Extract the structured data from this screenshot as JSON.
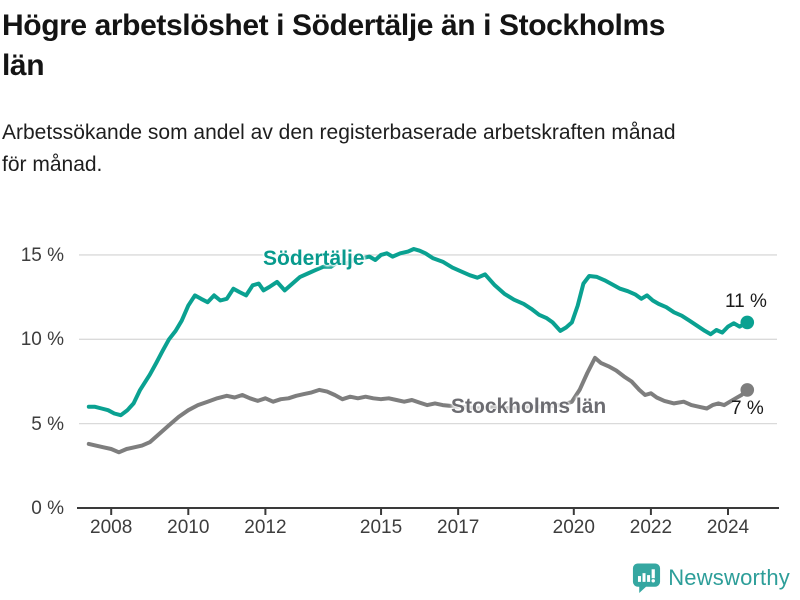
{
  "header": {
    "title_line1": "Högre arbetslöshet i Södertälje än i Stockholms",
    "title_line2": "län",
    "subtitle_line1": "Arbetssökande som andel av den registerbaserade arbetskraften månad",
    "subtitle_line2": "för månad."
  },
  "chart_data": {
    "type": "line",
    "title": "Högre arbetslöshet i Södertälje än i Stockholms län",
    "subtitle": "Arbetssökande som andel av den registerbaserade arbetskraften månad för månad.",
    "unit": "%",
    "grid": "horizontal",
    "legend_position": "inline-labels",
    "ylim": [
      0,
      16.5
    ],
    "xlim": [
      2007.3,
      2025.4
    ],
    "y_ticks": [
      {
        "value": 15,
        "label": "15 %"
      },
      {
        "value": 10,
        "label": "10 %"
      },
      {
        "value": 5,
        "label": "5 %"
      },
      {
        "value": 0,
        "label": "0 %"
      }
    ],
    "y_grid_values": [
      15,
      10,
      5
    ],
    "x_ticks": [
      {
        "year": 2008,
        "label": "2008"
      },
      {
        "year": 2010,
        "label": "2010"
      },
      {
        "year": 2012,
        "label": "2012"
      },
      {
        "year": 2015,
        "label": "2015"
      },
      {
        "year": 2017,
        "label": "2017"
      },
      {
        "year": 2020,
        "label": "2020"
      },
      {
        "year": 2022,
        "label": "2022"
      },
      {
        "year": 2024,
        "label": "2024"
      }
    ],
    "series": [
      {
        "name": "Södertälje",
        "color": "#0aa191",
        "end_label": "11 %",
        "end_value": 11,
        "points": [
          [
            2007.42,
            6.0
          ],
          [
            2007.58,
            6.0
          ],
          [
            2007.75,
            5.9
          ],
          [
            2007.92,
            5.8
          ],
          [
            2008.08,
            5.6
          ],
          [
            2008.25,
            5.5
          ],
          [
            2008.42,
            5.8
          ],
          [
            2008.58,
            6.2
          ],
          [
            2008.75,
            7.0
          ],
          [
            2009.0,
            7.9
          ],
          [
            2009.17,
            8.6
          ],
          [
            2009.33,
            9.3
          ],
          [
            2009.5,
            10.0
          ],
          [
            2009.67,
            10.5
          ],
          [
            2009.83,
            11.1
          ],
          [
            2010.0,
            12.0
          ],
          [
            2010.17,
            12.6
          ],
          [
            2010.33,
            12.4
          ],
          [
            2010.5,
            12.2
          ],
          [
            2010.67,
            12.6
          ],
          [
            2010.83,
            12.3
          ],
          [
            2011.0,
            12.4
          ],
          [
            2011.17,
            13.0
          ],
          [
            2011.33,
            12.8
          ],
          [
            2011.5,
            12.6
          ],
          [
            2011.67,
            13.2
          ],
          [
            2011.83,
            13.3
          ],
          [
            2011.95,
            12.9
          ],
          [
            2012.1,
            13.1
          ],
          [
            2012.3,
            13.4
          ],
          [
            2012.5,
            12.9
          ],
          [
            2012.7,
            13.3
          ],
          [
            2012.9,
            13.7
          ],
          [
            2013.1,
            13.9
          ],
          [
            2013.3,
            14.1
          ],
          [
            2013.5,
            14.3
          ],
          [
            2013.7,
            14.3
          ],
          [
            2013.9,
            14.6
          ],
          [
            2014.1,
            14.5
          ],
          [
            2014.3,
            14.7
          ],
          [
            2014.5,
            14.8
          ],
          [
            2014.7,
            14.9
          ],
          [
            2014.85,
            14.7
          ],
          [
            2015.0,
            15.0
          ],
          [
            2015.15,
            15.1
          ],
          [
            2015.3,
            14.9
          ],
          [
            2015.5,
            15.1
          ],
          [
            2015.7,
            15.2
          ],
          [
            2015.85,
            15.35
          ],
          [
            2016.0,
            15.25
          ],
          [
            2016.15,
            15.1
          ],
          [
            2016.35,
            14.8
          ],
          [
            2016.6,
            14.6
          ],
          [
            2016.85,
            14.25
          ],
          [
            2017.1,
            14.0
          ],
          [
            2017.3,
            13.8
          ],
          [
            2017.5,
            13.65
          ],
          [
            2017.7,
            13.85
          ],
          [
            2017.95,
            13.2
          ],
          [
            2018.2,
            12.7
          ],
          [
            2018.45,
            12.35
          ],
          [
            2018.7,
            12.1
          ],
          [
            2018.9,
            11.8
          ],
          [
            2019.1,
            11.45
          ],
          [
            2019.3,
            11.25
          ],
          [
            2019.45,
            11.0
          ],
          [
            2019.65,
            10.5
          ],
          [
            2019.8,
            10.7
          ],
          [
            2019.95,
            11.0
          ],
          [
            2020.1,
            12.0
          ],
          [
            2020.25,
            13.3
          ],
          [
            2020.4,
            13.75
          ],
          [
            2020.6,
            13.7
          ],
          [
            2020.8,
            13.5
          ],
          [
            2021.0,
            13.25
          ],
          [
            2021.2,
            13.0
          ],
          [
            2021.4,
            12.85
          ],
          [
            2021.6,
            12.65
          ],
          [
            2021.75,
            12.4
          ],
          [
            2021.9,
            12.6
          ],
          [
            2022.05,
            12.3
          ],
          [
            2022.2,
            12.1
          ],
          [
            2022.4,
            11.9
          ],
          [
            2022.6,
            11.6
          ],
          [
            2022.8,
            11.4
          ],
          [
            2023.0,
            11.1
          ],
          [
            2023.2,
            10.8
          ],
          [
            2023.4,
            10.5
          ],
          [
            2023.55,
            10.3
          ],
          [
            2023.7,
            10.55
          ],
          [
            2023.85,
            10.4
          ],
          [
            2024.0,
            10.75
          ],
          [
            2024.15,
            10.95
          ],
          [
            2024.3,
            10.75
          ],
          [
            2024.5,
            11.0
          ]
        ]
      },
      {
        "name": "Stockholms län",
        "color": "#7e7e7e",
        "end_label": "7 %",
        "end_value": 7,
        "points": [
          [
            2007.42,
            3.8
          ],
          [
            2007.6,
            3.7
          ],
          [
            2007.8,
            3.6
          ],
          [
            2008.0,
            3.5
          ],
          [
            2008.2,
            3.3
          ],
          [
            2008.4,
            3.5
          ],
          [
            2008.6,
            3.6
          ],
          [
            2008.8,
            3.7
          ],
          [
            2009.0,
            3.9
          ],
          [
            2009.25,
            4.4
          ],
          [
            2009.5,
            4.9
          ],
          [
            2009.75,
            5.4
          ],
          [
            2010.0,
            5.8
          ],
          [
            2010.25,
            6.1
          ],
          [
            2010.5,
            6.3
          ],
          [
            2010.75,
            6.5
          ],
          [
            2011.0,
            6.65
          ],
          [
            2011.2,
            6.55
          ],
          [
            2011.4,
            6.7
          ],
          [
            2011.6,
            6.5
          ],
          [
            2011.8,
            6.35
          ],
          [
            2012.0,
            6.5
          ],
          [
            2012.2,
            6.3
          ],
          [
            2012.4,
            6.45
          ],
          [
            2012.6,
            6.5
          ],
          [
            2012.8,
            6.65
          ],
          [
            2013.0,
            6.75
          ],
          [
            2013.2,
            6.85
          ],
          [
            2013.4,
            7.0
          ],
          [
            2013.6,
            6.9
          ],
          [
            2013.8,
            6.7
          ],
          [
            2014.0,
            6.45
          ],
          [
            2014.2,
            6.6
          ],
          [
            2014.4,
            6.5
          ],
          [
            2014.6,
            6.6
          ],
          [
            2014.8,
            6.5
          ],
          [
            2015.0,
            6.45
          ],
          [
            2015.2,
            6.5
          ],
          [
            2015.4,
            6.4
          ],
          [
            2015.6,
            6.3
          ],
          [
            2015.8,
            6.4
          ],
          [
            2016.0,
            6.25
          ],
          [
            2016.2,
            6.1
          ],
          [
            2016.4,
            6.2
          ],
          [
            2016.6,
            6.1
          ],
          [
            2016.8,
            6.05
          ],
          [
            2017.0,
            6.0
          ],
          [
            2017.3,
            5.95
          ],
          [
            2017.6,
            5.9
          ],
          [
            2017.9,
            6.0
          ],
          [
            2018.2,
            5.9
          ],
          [
            2018.5,
            5.95
          ],
          [
            2018.8,
            6.0
          ],
          [
            2019.1,
            6.0
          ],
          [
            2019.4,
            6.05
          ],
          [
            2019.7,
            6.1
          ],
          [
            2019.95,
            6.3
          ],
          [
            2020.15,
            7.0
          ],
          [
            2020.35,
            8.0
          ],
          [
            2020.55,
            8.9
          ],
          [
            2020.7,
            8.6
          ],
          [
            2020.9,
            8.4
          ],
          [
            2021.1,
            8.15
          ],
          [
            2021.3,
            7.8
          ],
          [
            2021.5,
            7.5
          ],
          [
            2021.7,
            7.0
          ],
          [
            2021.85,
            6.7
          ],
          [
            2022.0,
            6.8
          ],
          [
            2022.15,
            6.55
          ],
          [
            2022.35,
            6.35
          ],
          [
            2022.6,
            6.2
          ],
          [
            2022.85,
            6.3
          ],
          [
            2023.05,
            6.1
          ],
          [
            2023.25,
            6.0
          ],
          [
            2023.45,
            5.9
          ],
          [
            2023.6,
            6.1
          ],
          [
            2023.75,
            6.2
          ],
          [
            2023.9,
            6.1
          ],
          [
            2024.05,
            6.3
          ],
          [
            2024.2,
            6.5
          ],
          [
            2024.35,
            6.7
          ],
          [
            2024.5,
            7.0
          ]
        ]
      }
    ],
    "colors": {
      "axis_line": "#3a3a3a",
      "grid_line": "#dadada",
      "tick_text": "#3d3d3d"
    }
  },
  "footer": {
    "brand": "Newsworthy",
    "brand_color": "#2d9e99",
    "logo_icon": "speech-bubble-bar-chart-icon"
  }
}
